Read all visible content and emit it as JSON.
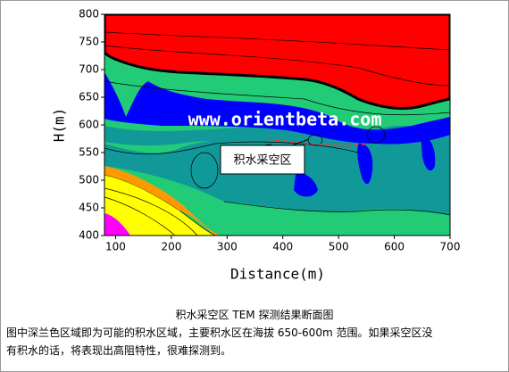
{
  "chart_data": {
    "type": "contour",
    "xlabel": "Distance(m)",
    "ylabel": "H(m)",
    "xlim": [
      80,
      700
    ],
    "ylim": [
      400,
      800
    ],
    "xticks": [
      100,
      200,
      300,
      400,
      500,
      600,
      700
    ],
    "yticks": [
      400,
      450,
      500,
      550,
      600,
      650,
      700,
      750,
      800
    ],
    "watermark": "www.orientbeta.com",
    "annotation": "积水采空区"
  },
  "caption": {
    "title": "积水采空区 TEM 探测结果断面图",
    "lines": [
      "图中深兰色区域即为可能的积水区域，主要积水区在海拔 650-600m 范围。如果采空区没",
      "有积水的话，将表现出高阻特性，很难探测到。"
    ]
  }
}
